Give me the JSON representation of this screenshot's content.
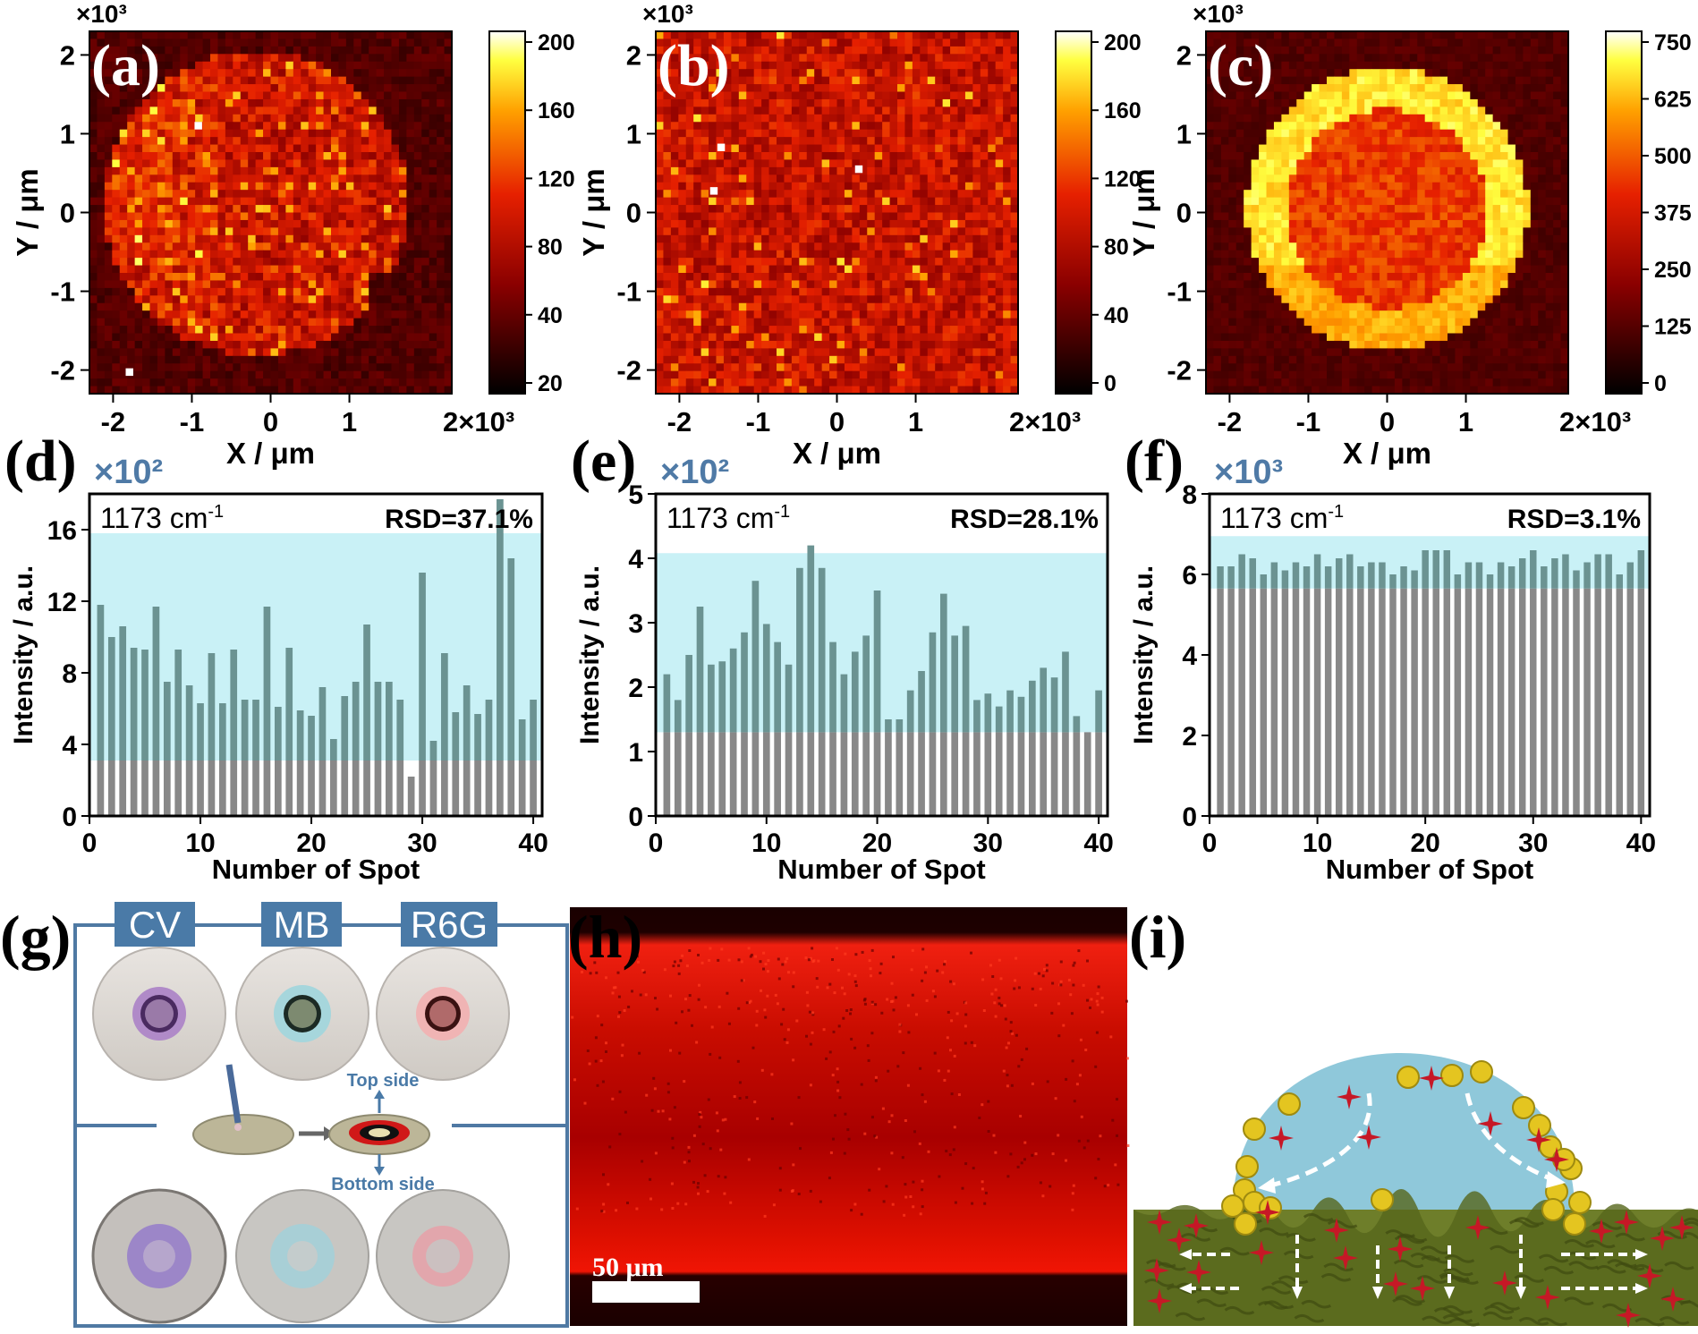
{
  "panel_letters": {
    "a": "(a)",
    "b": "(b)",
    "c": "(c)",
    "d": "(d)",
    "e": "(e)",
    "f": "(f)",
    "g": "(g)",
    "h": "(h)",
    "i": "(i)"
  },
  "maps": {
    "y_exp": "×10³",
    "x_exp": "2×10³",
    "xlabel": "X / μm",
    "ylabel": "Y / μm",
    "xticks": [
      "-2",
      "-1",
      "0",
      "1"
    ],
    "yticks": [
      "2",
      "1",
      "0",
      "-1",
      "-2"
    ],
    "colorbars": [
      [
        "200",
        "160",
        "120",
        "80",
        "40",
        "20"
      ],
      [
        "200",
        "160",
        "120",
        "80",
        "40",
        "0"
      ],
      [
        "750",
        "625",
        "500",
        "375",
        "250",
        "125",
        "0"
      ]
    ]
  },
  "bars": {
    "xlabel": "Number of Spot",
    "ylabel": "Intensity / a.u.",
    "peak": "1173 cm",
    "peak_sup": "-1",
    "xticks": [
      "0",
      "10",
      "20",
      "30",
      "40"
    ],
    "panels": [
      {
        "exp": "×10²",
        "rsd": "RSD=37.1%",
        "yticks": [
          "16",
          "12",
          "8",
          "4",
          "0"
        ]
      },
      {
        "exp": "×10²",
        "rsd": "RSD=28.1%",
        "yticks": [
          "5",
          "4",
          "3",
          "2",
          "1",
          "0"
        ]
      },
      {
        "exp": "×10³",
        "rsd": "RSD=3.1%",
        "yticks": [
          "8",
          "6",
          "4",
          "2",
          "0"
        ]
      }
    ]
  },
  "g": {
    "labels": [
      "CV",
      "MB",
      "R6G"
    ],
    "top": "Top side",
    "bottom": "Bottom side"
  },
  "h": {
    "scale": "50 μm"
  },
  "chart_data": [
    {
      "type": "heatmap",
      "title": "(a)",
      "xlabel": "X / μm",
      "ylabel": "Y / μm",
      "xlim": [
        -2300,
        2300
      ],
      "ylim": [
        -2300,
        2300
      ],
      "colorbar": [
        20,
        200
      ]
    },
    {
      "type": "heatmap",
      "title": "(b)",
      "xlabel": "X / μm",
      "ylabel": "Y / μm",
      "xlim": [
        -2300,
        2300
      ],
      "ylim": [
        -2300,
        2300
      ],
      "colorbar": [
        0,
        200
      ]
    },
    {
      "type": "heatmap",
      "title": "(c)",
      "xlabel": "X / μm",
      "ylabel": "Y / μm",
      "xlim": [
        -2300,
        2300
      ],
      "ylim": [
        -2300,
        2300
      ],
      "colorbar": [
        0,
        750
      ]
    },
    {
      "type": "bar",
      "title": "(d)",
      "xlabel": "Number of Spot",
      "ylabel": "Intensity / a.u.",
      "ylim": [
        0,
        18
      ],
      "x": [
        1,
        2,
        3,
        4,
        5,
        6,
        7,
        8,
        9,
        10,
        11,
        12,
        13,
        14,
        15,
        16,
        17,
        18,
        19,
        20,
        21,
        22,
        23,
        24,
        25,
        26,
        27,
        28,
        29,
        30,
        31,
        32,
        33,
        34,
        35,
        36,
        37,
        38,
        39,
        40
      ],
      "values": [
        11.8,
        10,
        10.6,
        9.4,
        9.3,
        11.7,
        7.5,
        9.3,
        7.3,
        6.3,
        9.1,
        6.3,
        9.3,
        6.5,
        6.5,
        11.7,
        6.1,
        9.4,
        5.9,
        5.6,
        7.2,
        4.3,
        6.7,
        7.5,
        10.7,
        7.5,
        7.5,
        6.5,
        2.2,
        13.6,
        4.2,
        9.1,
        5.8,
        7.3,
        5.7,
        6.5,
        17.7,
        14.4,
        5.4,
        6.5
      ]
    },
    {
      "type": "bar",
      "title": "(e)",
      "xlabel": "Number of Spot",
      "ylabel": "Intensity / a.u.",
      "ylim": [
        0,
        5
      ],
      "x": [
        1,
        2,
        3,
        4,
        5,
        6,
        7,
        8,
        9,
        10,
        11,
        12,
        13,
        14,
        15,
        16,
        17,
        18,
        19,
        20,
        21,
        22,
        23,
        24,
        25,
        26,
        27,
        28,
        29,
        30,
        31,
        32,
        33,
        34,
        35,
        36,
        37,
        38,
        39,
        40
      ],
      "values": [
        2.2,
        1.8,
        2.5,
        3.25,
        2.35,
        2.4,
        2.6,
        2.85,
        3.65,
        2.98,
        2.7,
        2.35,
        3.85,
        4.2,
        3.85,
        2.7,
        2.2,
        2.55,
        2.8,
        3.5,
        1.5,
        1.5,
        1.95,
        2.25,
        2.85,
        3.45,
        2.8,
        2.95,
        1.8,
        1.9,
        1.7,
        1.95,
        1.85,
        2.1,
        2.3,
        2.15,
        2.55,
        1.55,
        1.3,
        1.95
      ]
    },
    {
      "type": "bar",
      "title": "(f)",
      "xlabel": "Number of Spot",
      "ylabel": "Intensity / a.u.",
      "ylim": [
        0,
        8
      ],
      "x": [
        1,
        2,
        3,
        4,
        5,
        6,
        7,
        8,
        9,
        10,
        11,
        12,
        13,
        14,
        15,
        16,
        17,
        18,
        19,
        20,
        21,
        22,
        23,
        24,
        25,
        26,
        27,
        28,
        29,
        30,
        31,
        32,
        33,
        34,
        35,
        36,
        37,
        38,
        39,
        40
      ],
      "values": [
        6.2,
        6.2,
        6.5,
        6.4,
        6.0,
        6.3,
        6.1,
        6.3,
        6.2,
        6.5,
        6.2,
        6.4,
        6.5,
        6.2,
        6.3,
        6.3,
        6.0,
        6.2,
        6.1,
        6.6,
        6.6,
        6.6,
        6.0,
        6.3,
        6.3,
        6.0,
        6.3,
        6.2,
        6.4,
        6.6,
        6.2,
        6.4,
        6.5,
        6.1,
        6.3,
        6.5,
        6.5,
        6.0,
        6.3,
        6.6
      ]
    }
  ]
}
